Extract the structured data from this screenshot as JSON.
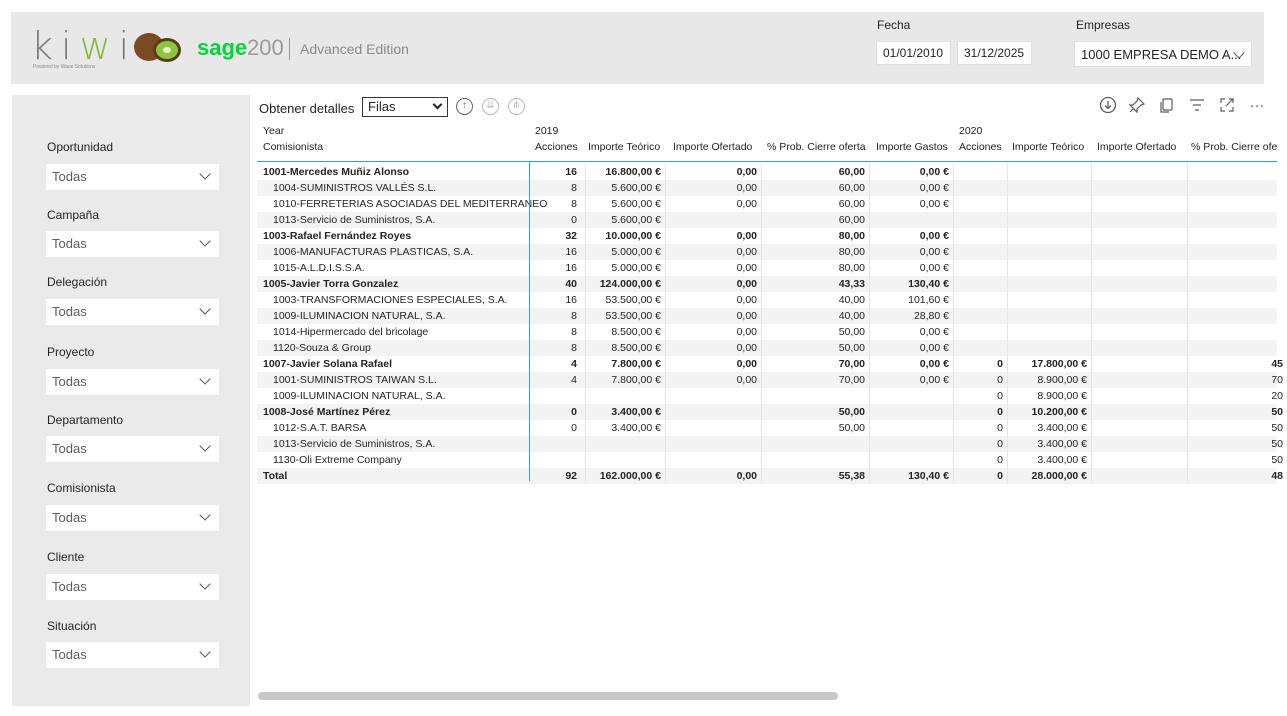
{
  "header": {
    "kiwi_brand": "kiwi",
    "kiwi_tagline": "Powered by Wase Solutions",
    "sage_brand": "sage",
    "sage_version": "200",
    "edition": "Advanced Edition",
    "fecha_label": "Fecha",
    "fecha_from": "01/01/2010",
    "fecha_to": "31/12/2025",
    "empresas_label": "Empresas",
    "empresas_value": "1000 EMPRESA DEMO A..."
  },
  "filters": [
    {
      "label": "Oportunidad",
      "value": "Todas"
    },
    {
      "label": "Campaña",
      "value": "Todas"
    },
    {
      "label": "Delegación",
      "value": "Todas"
    },
    {
      "label": "Proyecto",
      "value": "Todas"
    },
    {
      "label": "Departamento",
      "value": "Todas"
    },
    {
      "label": "Comisionista",
      "value": "Todas"
    },
    {
      "label": "Cliente",
      "value": "Todas"
    },
    {
      "label": "Situación",
      "value": "Todas"
    }
  ],
  "details": {
    "label": "Obtener detalles",
    "select_value": "Filas"
  },
  "table": {
    "header_year": "Year",
    "header_comisionista": "Comisionista",
    "year_2019": "2019",
    "year_2020": "2020",
    "cols": [
      "Acciones",
      "Importe Teórico",
      "Importe Ofertado",
      "% Prob. Cierre oferta",
      "Importe Gastos",
      "Acciones",
      "Importe Teórico",
      "Importe Ofertado",
      "% Prob. Cierre ofe"
    ],
    "rows": [
      {
        "name": "1001-Mercedes Muñiz Alonso",
        "bold": true,
        "v": [
          "16",
          "16.800,00 €",
          "0,00",
          "60,00",
          "0,00 €",
          "",
          "",
          "",
          ""
        ]
      },
      {
        "name": "1004-SUMINISTROS VALLÉS S.L.",
        "bold": false,
        "v": [
          "8",
          "5.600,00 €",
          "0,00",
          "60,00",
          "0,00 €",
          "",
          "",
          "",
          ""
        ]
      },
      {
        "name": "1010-FERRETERIAS ASOCIADAS DEL MEDITERRANEO",
        "bold": false,
        "v": [
          "8",
          "5.600,00 €",
          "0,00",
          "60,00",
          "0,00 €",
          "",
          "",
          "",
          ""
        ]
      },
      {
        "name": "1013-Servicio de Suministros, S.A.",
        "bold": false,
        "v": [
          "0",
          "5.600,00 €",
          "",
          "60,00",
          "",
          "",
          "",
          "",
          ""
        ]
      },
      {
        "name": "1003-Rafael Fernández Royes",
        "bold": true,
        "v": [
          "32",
          "10.000,00 €",
          "0,00",
          "80,00",
          "0,00 €",
          "",
          "",
          "",
          ""
        ]
      },
      {
        "name": "1006-MANUFACTURAS PLASTICAS, S.A.",
        "bold": false,
        "v": [
          "16",
          "5.000,00 €",
          "0,00",
          "80,00",
          "0,00 €",
          "",
          "",
          "",
          ""
        ]
      },
      {
        "name": "1015-A.L.D.I.S.S.A.",
        "bold": false,
        "v": [
          "16",
          "5.000,00 €",
          "0,00",
          "80,00",
          "0,00 €",
          "",
          "",
          "",
          ""
        ]
      },
      {
        "name": "1005-Javier Torra Gonzalez",
        "bold": true,
        "v": [
          "40",
          "124.000,00 €",
          "0,00",
          "43,33",
          "130,40 €",
          "",
          "",
          "",
          ""
        ]
      },
      {
        "name": "1003-TRANSFORMACIONES ESPECIALES, S.A.",
        "bold": false,
        "v": [
          "16",
          "53.500,00 €",
          "0,00",
          "40,00",
          "101,60 €",
          "",
          "",
          "",
          ""
        ]
      },
      {
        "name": "1009-ILUMINACION NATURAL, S.A.",
        "bold": false,
        "v": [
          "8",
          "53.500,00 €",
          "0,00",
          "40,00",
          "28,80 €",
          "",
          "",
          "",
          ""
        ]
      },
      {
        "name": "1014-Hipermercado del bricolage",
        "bold": false,
        "v": [
          "8",
          "8.500,00 €",
          "0,00",
          "50,00",
          "0,00 €",
          "",
          "",
          "",
          ""
        ]
      },
      {
        "name": "1120-Souza & Group",
        "bold": false,
        "v": [
          "8",
          "8.500,00 €",
          "0,00",
          "50,00",
          "0,00 €",
          "",
          "",
          "",
          ""
        ]
      },
      {
        "name": "1007-Javier Solana Rafael",
        "bold": true,
        "v": [
          "4",
          "7.800,00 €",
          "0,00",
          "70,00",
          "0,00 €",
          "0",
          "17.800,00 €",
          "",
          "45"
        ]
      },
      {
        "name": "1001-SUMINISTROS TAIWAN S.L.",
        "bold": false,
        "v": [
          "4",
          "7.800,00 €",
          "0,00",
          "70,00",
          "0,00 €",
          "0",
          "8.900,00 €",
          "",
          "70"
        ]
      },
      {
        "name": "1009-ILUMINACION NATURAL, S.A.",
        "bold": false,
        "v": [
          "",
          "",
          "",
          "",
          "",
          "0",
          "8.900,00 €",
          "",
          "20"
        ]
      },
      {
        "name": "1008-José Martínez Pérez",
        "bold": true,
        "v": [
          "0",
          "3.400,00 €",
          "",
          "50,00",
          "",
          "0",
          "10.200,00 €",
          "",
          "50"
        ]
      },
      {
        "name": "1012-S.A.T. BARSA",
        "bold": false,
        "v": [
          "0",
          "3.400,00 €",
          "",
          "50,00",
          "",
          "0",
          "3.400,00 €",
          "",
          "50"
        ]
      },
      {
        "name": "1013-Servicio de Suministros, S.A.",
        "bold": false,
        "v": [
          "",
          "",
          "",
          "",
          "",
          "0",
          "3.400,00 €",
          "",
          "50"
        ]
      },
      {
        "name": "1130-Oli Extreme Company",
        "bold": false,
        "v": [
          "",
          "",
          "",
          "",
          "",
          "0",
          "3.400,00 €",
          "",
          "50"
        ]
      },
      {
        "name": "Total",
        "bold": true,
        "v": [
          "92",
          "162.000,00 €",
          "0,00",
          "55,38",
          "130,40 €",
          "0",
          "28.000,00 €",
          "",
          "48"
        ]
      }
    ]
  }
}
